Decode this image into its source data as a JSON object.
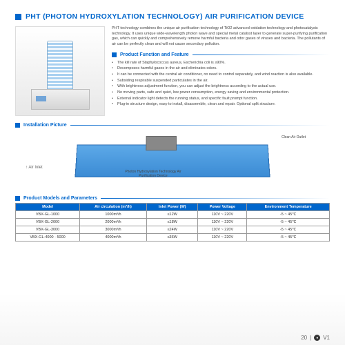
{
  "title": "PHT (PHOTON HYDROXYLATION TECHNOLOGY) AIR PURIFICATION DEVICE",
  "intro": "PHT technology combines the unique air purification technology of TiO2 advanced oxidation technology and photocatalysis technology. It uses unique wide-wavelength photon wave and special metal catalyst layer to generate super-purifying purification gas, which can quickly and comprehensively remove harmful bacteria and odor gases of viruses and bacteria. The pollutants of air can be perfectly clean and will not cause secondary pollution.",
  "feature_head": "Product Function and Feature",
  "features": [
    "The kill rate of Staphylococcus aureus, Escherichia coli is ≥90%.",
    "Decomposes harmful gases in the air and eliminates odors.",
    "It can be connected with the central air conditioner, no need to control separately, and wind reaction is also available.",
    "Subsiding respirable suspended particulates in the air.",
    "With brightness adjustment function, you can adjust the brightness according to the actual use.",
    "No moving parts, safe and quiet, low power consumption, energy saving and environmental protection.",
    "External indicator light detects the running status, and specific fault prompt function.",
    "Plug-in structure design, easy to install, disassemble, clean and repair. Optional split structure."
  ],
  "install_head": "Installation Picture",
  "install_labels": {
    "air_inlet": "↑ Air Inlet",
    "air_outlet": "Clean Air Outlet",
    "device": "Photon Hydroxylation Technology Air Purification Device"
  },
  "params_head": "Product Models and Parameters",
  "table": {
    "cols": [
      "Model",
      "Air circulation (m³/h)",
      "Inlet Power (W)",
      "Power Voltage",
      "Environment Temperature"
    ],
    "rows": [
      [
        "VBX-GL-1000",
        "1000m³/h",
        "≤12W",
        "110V ~ 220V",
        "-5 ~ 45℃"
      ],
      [
        "VBX-GL-2000",
        "2000m³/h",
        "≤18W",
        "110V ~ 220V",
        "-5 ~ 45℃"
      ],
      [
        "VBX-GL-3000",
        "3000m³/h",
        "≤24W",
        "110V ~ 220V",
        "-5 ~ 45℃"
      ],
      [
        "VBX-GL-4000 · 5000",
        "4000m³/h",
        "≤36W",
        "110V ~ 220V",
        "-5 ~ 45℃"
      ]
    ]
  },
  "footer": {
    "page": "20",
    "brand": "V1"
  },
  "colors": {
    "primary": "#0066cc",
    "duct": "#3b8bd4"
  }
}
